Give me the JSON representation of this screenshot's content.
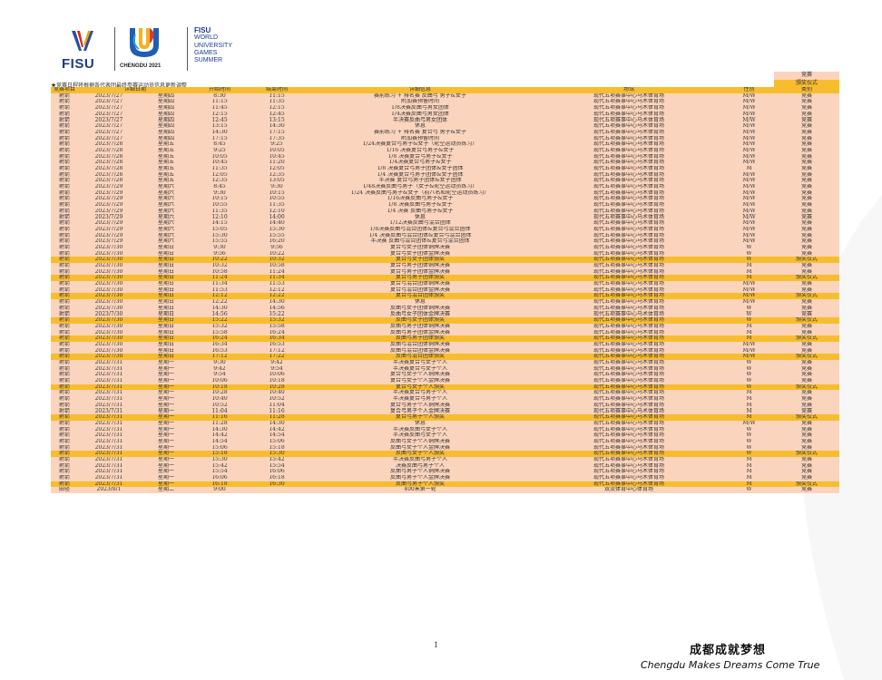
{
  "header": {
    "fisu_text": "FISU",
    "chengdu_text": "CHENGDU 2021",
    "wugs_lines": [
      "FISU",
      "WORLD",
      "UNIVERSITY",
      "GAMES",
      "SUMMER"
    ]
  },
  "legend": {
    "competition": "竞赛",
    "award": "颁奖仪式"
  },
  "notice": "★竞赛日程将根据各代表团最终参赛运动员信息更新调整",
  "columns": [
    "竞赛项目",
    "详细日期",
    "开始时间",
    "结束时间",
    "详细信息",
    "场馆",
    "性别",
    "类别"
  ],
  "colors": {
    "competition_row": "#fbd4bd",
    "award_row": "#f7bd2e"
  },
  "rows": [
    [
      "射箭",
      "2023/7/27",
      "星期四",
      "8:30",
      "11:15",
      "赛前练习 + 排名赛  反曲弓  男子&女子",
      "现代五项赛事中心马术体育场",
      "M/W",
      "竞赛"
    ],
    [
      "射箭",
      "2023/7/27",
      "星期四",
      "11:15",
      "11:35",
      "附加赛预留时间",
      "现代五项赛事中心马术体育场",
      "M/W",
      "竞赛"
    ],
    [
      "射箭",
      "2023/7/27",
      "星期四",
      "11:45",
      "12:15",
      "1/8决赛反曲弓男女团体",
      "现代五项赛事中心马术体育场",
      "M/W",
      "竞赛"
    ],
    [
      "射箭",
      "2023/7/27",
      "星期四",
      "12:15",
      "12:45",
      "1/4决赛反曲弓男女团体",
      "现代五项赛事中心马术体育场",
      "M/W",
      "竞赛"
    ],
    [
      "射箭",
      "2023/7/27",
      "星期四",
      "12:45",
      "13:15",
      "半决赛反曲弓男女团体",
      "现代五项赛事中心马术体育场",
      "M/W",
      "竞赛"
    ],
    [
      "射箭",
      "2023/7/27",
      "星期四",
      "13:15",
      "14:30",
      "休息",
      "现代五项赛事中心马术体育场",
      "M/W",
      "竞赛"
    ],
    [
      "射箭",
      "2023/7/27",
      "星期四",
      "14:30",
      "17:15",
      "赛前练习 + 排名赛  复合弓  男子&女子",
      "现代五项赛事中心马术体育场",
      "M/W",
      "竞赛"
    ],
    [
      "射箭",
      "2023/7/27",
      "星期四",
      "17:15",
      "17:35",
      "附加赛预留时间",
      "现代五项赛事中心马术体育场",
      "M/W",
      "竞赛"
    ],
    [
      "射箭",
      "2023/7/28",
      "星期五",
      "8:45",
      "9:25",
      "1/24决赛复合弓男子&女子（轮空运动员练习）",
      "现代五项赛事中心马术体育场",
      "M/W",
      "竞赛"
    ],
    [
      "射箭",
      "2023/7/28",
      "星期五",
      "9:25",
      "10:05",
      "1/16  决赛复合弓男子&女子",
      "现代五项赛事中心马术体育场",
      "M/W",
      "竞赛"
    ],
    [
      "射箭",
      "2023/7/28",
      "星期五",
      "10:05",
      "10:45",
      "1/8  决赛复合弓男子&女子",
      "现代五项赛事中心马术体育场",
      "M/W",
      "竞赛"
    ],
    [
      "射箭",
      "2023/7/28",
      "星期五",
      "10:45",
      "11:20",
      "1/4决赛复合弓男子&女子",
      "现代五项赛事中心马术体育场",
      "M/W",
      "竞赛"
    ],
    [
      "射箭",
      "2023/7/28",
      "星期五",
      "11:35",
      "12:05",
      "1/8  决赛复合弓男子团体&女子团体",
      "现代五项赛事中心马术体育场",
      "M",
      "竞赛"
    ],
    [
      "射箭",
      "2023/7/28",
      "星期五",
      "12:05",
      "12:35",
      "1/4  决赛复合弓男子团体&女子团体",
      "现代五项赛事中心马术体育场",
      "M/W",
      "竞赛"
    ],
    [
      "射箭",
      "2023/7/28",
      "星期五",
      "12:35",
      "13:05",
      "半决赛  复合弓男子团体&女子团体",
      "现代五项赛事中心马术体育场",
      "M/W",
      "竞赛"
    ],
    [
      "射箭",
      "2023/7/29",
      "星期六",
      "8:45",
      "9:30",
      "1/48决赛反曲弓男子（女子&轮空运动员练习）",
      "现代五项赛事中心马术体育场",
      "M/W",
      "竞赛"
    ],
    [
      "射箭",
      "2023/7/29",
      "星期六",
      "9:30",
      "10:15",
      "1/24  决赛反曲弓男子&女子（前八名和轮空运动员练习）",
      "现代五项赛事中心马术体育场",
      "M/W",
      "竞赛"
    ],
    [
      "射箭",
      "2023/7/29",
      "星期六",
      "10:15",
      "10:55",
      "1/16决赛反曲弓男子&女子",
      "现代五项赛事中心马术体育场",
      "M/W",
      "竞赛"
    ],
    [
      "射箭",
      "2023/7/29",
      "星期六",
      "10:55",
      "11:35",
      "1/8  决赛反曲弓男子&女子",
      "现代五项赛事中心马术体育场",
      "M/W",
      "竞赛"
    ],
    [
      "射箭",
      "2023/7/29",
      "星期六",
      "11:35",
      "12:10",
      "1/4  决赛  反曲弓男子&女子",
      "现代五项赛事中心马术体育场",
      "M/W",
      "竞赛"
    ],
    [
      "射箭",
      "2023/7/29",
      "星期六",
      "12:10",
      "14:00",
      "休息",
      "现代五项赛事中心马术体育场",
      "M/W",
      "竞赛"
    ],
    [
      "射箭",
      "2023/7/29",
      "星期六",
      "14:15",
      "14:40",
      "1/12决赛反曲弓混合团体",
      "现代五项赛事中心马术体育场",
      "M/W",
      "竞赛"
    ],
    [
      "射箭",
      "2023/7/29",
      "星期六",
      "15:05",
      "15:30",
      "1/8决赛反曲弓混合团体&复合弓混合团体",
      "现代五项赛事中心马术体育场",
      "M/W",
      "竞赛"
    ],
    [
      "射箭",
      "2023/7/29",
      "星期六",
      "15:30",
      "15:55",
      "1/4  决赛反曲弓混合团体&复合弓混合团体",
      "现代五项赛事中心马术体育场",
      "M/W",
      "竞赛"
    ],
    [
      "射箭",
      "2023/7/29",
      "星期六",
      "15:55",
      "16:20",
      "半决赛  反曲弓混合团体&复合弓混合团体",
      "现代五项赛事中心马术体育场",
      "M/W",
      "竞赛"
    ],
    [
      "射箭",
      "2023/7/30",
      "星期日",
      "9:30",
      "9:56",
      "复合弓女子团体铜牌决赛",
      "现代五项赛事中心马术体育场",
      "W",
      "竞赛"
    ],
    [
      "射箭",
      "2023/7/30",
      "星期日",
      "9:56",
      "10:22",
      "复合弓女子团体金牌决赛",
      "现代五项赛事中心马术体育场",
      "W",
      "竞赛"
    ],
    [
      "射箭",
      "2023/7/30",
      "星期日",
      "10:22",
      "10:32",
      "复合弓女子团体颁奖",
      "现代五项赛事中心马术体育场",
      "W",
      "颁奖仪式"
    ],
    [
      "射箭",
      "2023/7/30",
      "星期日",
      "10:32",
      "10:58",
      "复合弓男子团体铜牌决赛",
      "现代五项赛事中心马术体育场",
      "M",
      "竞赛"
    ],
    [
      "射箭",
      "2023/7/30",
      "星期日",
      "10:58",
      "11:24",
      "复合弓男子团体金牌决赛",
      "现代五项赛事中心马术体育场",
      "M",
      "竞赛"
    ],
    [
      "射箭",
      "2023/7/30",
      "星期日",
      "11:24",
      "11:34",
      "复合弓男子团体颁奖",
      "现代五项赛事中心马术体育场",
      "M",
      "颁奖仪式"
    ],
    [
      "射箭",
      "2023/7/30",
      "星期日",
      "11:34",
      "11:53",
      "复合弓混合团体铜牌决赛",
      "现代五项赛事中心马术体育场",
      "M/W",
      "竞赛"
    ],
    [
      "射箭",
      "2023/7/30",
      "星期日",
      "11:53",
      "12:12",
      "复合弓混合团体金牌决赛",
      "现代五项赛事中心马术体育场",
      "M/W",
      "竞赛"
    ],
    [
      "射箭",
      "2023/7/30",
      "星期日",
      "12:12",
      "12:22",
      "复合弓混合团体颁奖",
      "现代五项赛事中心马术体育场",
      "M/W",
      "颁奖仪式"
    ],
    [
      "射箭",
      "2023/7/30",
      "星期日",
      "12:22",
      "14:30",
      "休息",
      "现代五项赛事中心马术体育场",
      "M/W",
      "竞赛"
    ],
    [
      "射箭",
      "2023/7/30",
      "星期日",
      "14:30",
      "14:56",
      "反曲弓女子团体铜牌决赛",
      "现代五项赛事中心马术体育场",
      "W",
      "竞赛"
    ],
    [
      "射箭",
      "2023/7/30",
      "星期日",
      "14:56",
      "15:22",
      "反曲弓女子团体金牌决赛",
      "现代五项赛事中心马术体育场",
      "W",
      "竞赛"
    ],
    [
      "射箭",
      "2023/7/30",
      "星期日",
      "15:22",
      "15:32",
      "反曲弓女子团体颁奖",
      "现代五项赛事中心马术体育场",
      "W",
      "颁奖仪式"
    ],
    [
      "射箭",
      "2023/7/30",
      "星期日",
      "15:32",
      "15:58",
      "反曲弓男子团体铜牌决赛",
      "现代五项赛事中心马术体育场",
      "M",
      "竞赛"
    ],
    [
      "射箭",
      "2023/7/30",
      "星期日",
      "15:58",
      "16:24",
      "反曲弓男子团体金牌决赛",
      "现代五项赛事中心马术体育场",
      "M",
      "竞赛"
    ],
    [
      "射箭",
      "2023/7/30",
      "星期日",
      "16:24",
      "16:34",
      "反曲弓男子团体颁奖",
      "现代五项赛事中心马术体育场",
      "M",
      "颁奖仪式"
    ],
    [
      "射箭",
      "2023/7/30",
      "星期日",
      "16:34",
      "16:53",
      "反曲弓混合团体铜牌决赛",
      "现代五项赛事中心马术体育场",
      "M/W",
      "竞赛"
    ],
    [
      "射箭",
      "2023/7/30",
      "星期日",
      "16:53",
      "17:12",
      "反曲弓混合团体金牌决赛",
      "现代五项赛事中心马术体育场",
      "M/W",
      "竞赛"
    ],
    [
      "射箭",
      "2023/7/30",
      "星期日",
      "17:12",
      "17:22",
      "反曲弓混合团体颁奖",
      "现代五项赛事中心马术体育场",
      "M/W",
      "颁奖仪式"
    ],
    [
      "射箭",
      "2023/7/31",
      "星期一",
      "9:30",
      "9:42",
      "半决赛复合弓女子个人",
      "现代五项赛事中心马术体育场",
      "W",
      "竞赛"
    ],
    [
      "射箭",
      "2023/7/31",
      "星期一",
      "9:42",
      "9:54",
      "半决赛复合弓女子个人",
      "现代五项赛事中心马术体育场",
      "W",
      "竞赛"
    ],
    [
      "射箭",
      "2023/7/31",
      "星期一",
      "9:54",
      "10:06",
      "复合弓女子个人铜牌决赛",
      "现代五项赛事中心马术体育场",
      "W",
      "竞赛"
    ],
    [
      "射箭",
      "2023/7/31",
      "星期一",
      "10:06",
      "10:18",
      "复合弓女子个人金牌决赛",
      "现代五项赛事中心马术体育场",
      "W",
      "竞赛"
    ],
    [
      "射箭",
      "2023/7/31",
      "星期一",
      "10:18",
      "10:28",
      "复合弓女子个人颁奖",
      "现代五项赛事中心马术体育场",
      "W",
      "颁奖仪式"
    ],
    [
      "射箭",
      "2023/7/31",
      "星期一",
      "10:28",
      "10:40",
      "半决赛复合弓男子个人",
      "现代五项赛事中心马术体育场",
      "M",
      "竞赛"
    ],
    [
      "射箭",
      "2023/7/31",
      "星期一",
      "10:40",
      "10:52",
      "半决赛复合弓男子个人",
      "现代五项赛事中心马术体育场",
      "M",
      "竞赛"
    ],
    [
      "射箭",
      "2023/7/31",
      "星期一",
      "10:52",
      "11:04",
      "复合弓男子个人铜牌决赛",
      "现代五项赛事中心马术体育场",
      "M",
      "竞赛"
    ],
    [
      "射箭",
      "2023/7/31",
      "星期一",
      "11:04",
      "11:16",
      "复合弓男子个人金牌决赛",
      "现代五项赛事中心马术体育场",
      "M",
      "竞赛"
    ],
    [
      "射箭",
      "2023/7/31",
      "星期一",
      "11:16",
      "11:28",
      "复合弓男子个人颁奖",
      "现代五项赛事中心马术体育场",
      "M",
      "颁奖仪式"
    ],
    [
      "射箭",
      "2023/7/31",
      "星期一",
      "11:28",
      "14:30",
      "休息",
      "现代五项赛事中心马术体育场",
      "M/W",
      "竞赛"
    ],
    [
      "射箭",
      "2023/7/31",
      "星期一",
      "14:30",
      "14:42",
      "半决赛反曲弓女子个人",
      "现代五项赛事中心马术体育场",
      "W",
      "竞赛"
    ],
    [
      "射箭",
      "2023/7/31",
      "星期一",
      "14:42",
      "14:54",
      "半决赛反曲弓女子个人",
      "现代五项赛事中心马术体育场",
      "W",
      "竞赛"
    ],
    [
      "射箭",
      "2023/7/31",
      "星期一",
      "14:54",
      "15:06",
      "反曲弓女子个人铜牌决赛",
      "现代五项赛事中心马术体育场",
      "W",
      "竞赛"
    ],
    [
      "射箭",
      "2023/7/31",
      "星期一",
      "15:06",
      "15:18",
      "反曲弓女子个人金牌决赛",
      "现代五项赛事中心马术体育场",
      "W",
      "竞赛"
    ],
    [
      "射箭",
      "2023/7/31",
      "星期一",
      "15:18",
      "15:30",
      "反曲弓女子个人颁奖",
      "现代五项赛事中心马术体育场",
      "W",
      "颁奖仪式"
    ],
    [
      "射箭",
      "2023/7/31",
      "星期一",
      "15:30",
      "15:42",
      "半决赛反曲弓男子个人",
      "现代五项赛事中心马术体育场",
      "M",
      "竞赛"
    ],
    [
      "射箭",
      "2023/7/31",
      "星期一",
      "15:42",
      "15:54",
      "决赛反曲弓男子个人",
      "现代五项赛事中心马术体育场",
      "M",
      "竞赛"
    ],
    [
      "射箭",
      "2023/7/31",
      "星期一",
      "15:54",
      "16:06",
      "反曲弓男子个人铜牌决赛",
      "现代五项赛事中心马术体育场",
      "M",
      "竞赛"
    ],
    [
      "射箭",
      "2023/7/31",
      "星期一",
      "16:06",
      "16:18",
      "反曲弓男子个人金牌决赛",
      "现代五项赛事中心马术体育场",
      "M",
      "竞赛"
    ],
    [
      "射箭",
      "2023/7/31",
      "星期一",
      "16:18",
      "16:30",
      "反曲弓男子个人颁奖",
      "现代五项赛事中心马术体育场",
      "M",
      "颁奖仪式"
    ],
    [
      "田径",
      "2023/8/1",
      "星期二",
      "9:00",
      "",
      "400米第一轮",
      "双流体育中心体育场",
      "W",
      "竞赛"
    ]
  ],
  "footer": {
    "page_number": "1",
    "slogan_cn": "成都成就梦想",
    "slogan_en": "Chengdu Makes Dreams Come True"
  }
}
